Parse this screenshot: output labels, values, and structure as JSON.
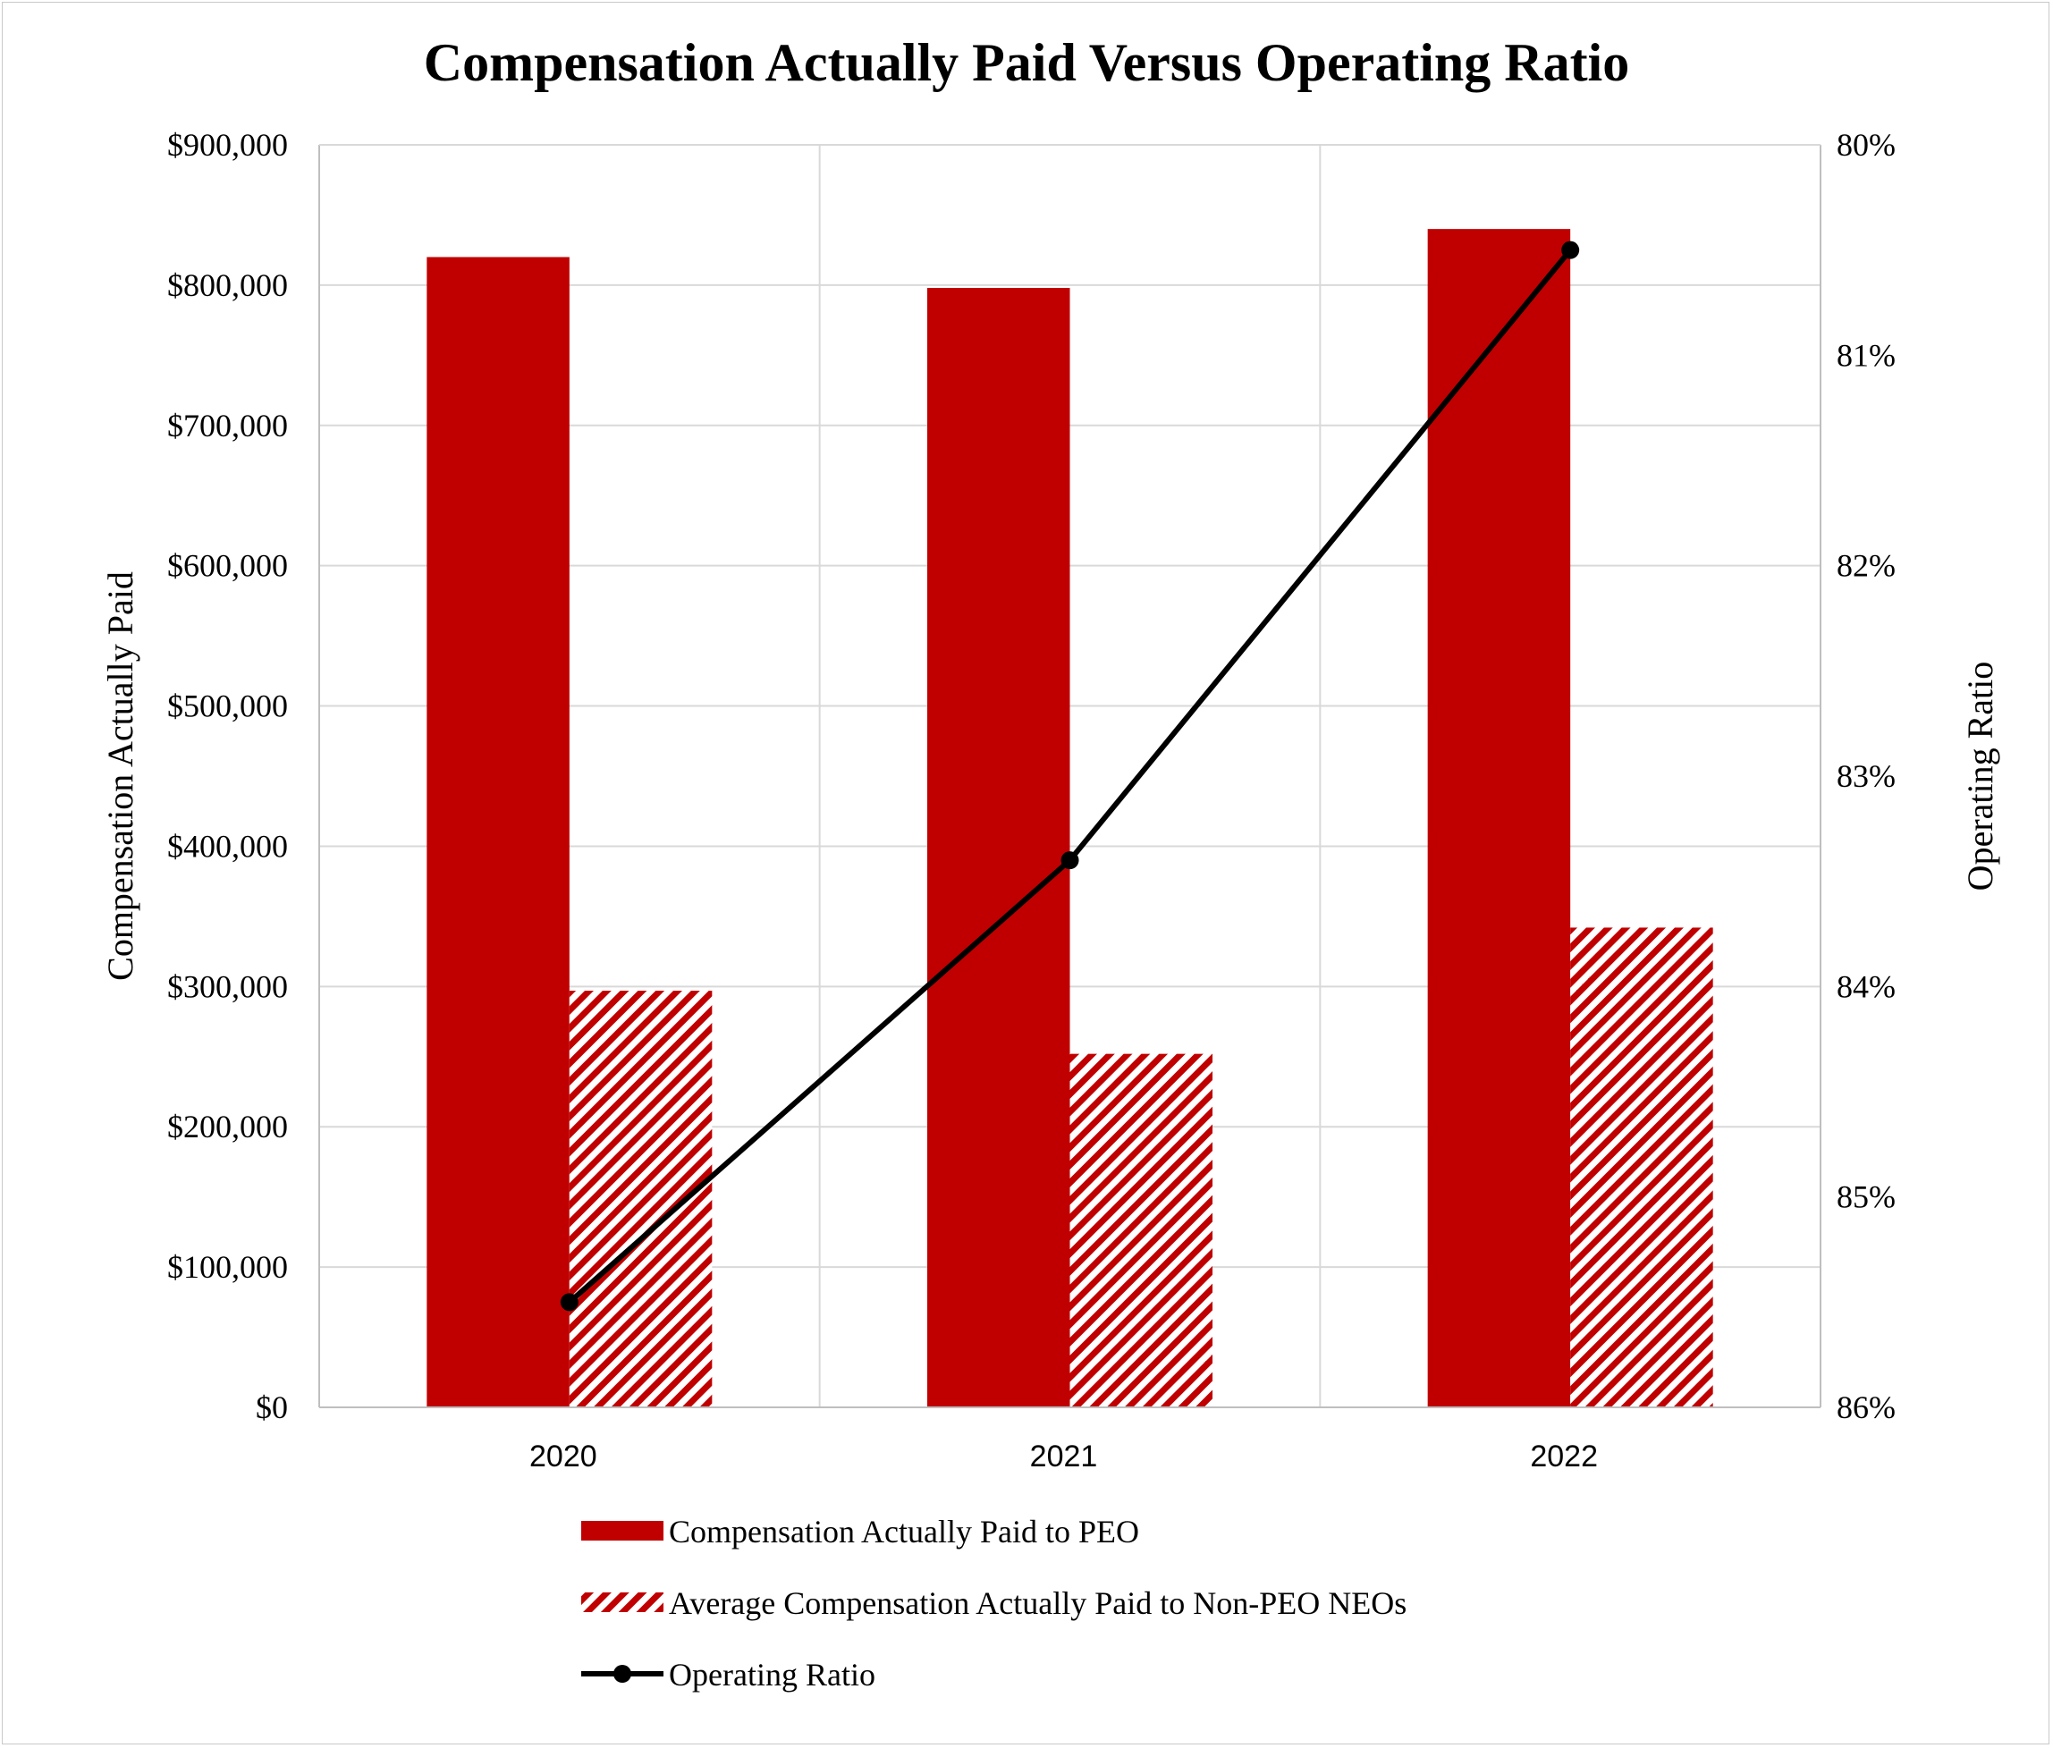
{
  "chart_data": {
    "type": "bar",
    "title": "Compensation Actually Paid Versus Operating Ratio",
    "categories": [
      "2020",
      "2021",
      "2022"
    ],
    "series": [
      {
        "name": "Compensation Actually Paid to PEO",
        "kind": "bar",
        "style": "solid",
        "axis": "left",
        "values": [
          820000,
          798000,
          840000
        ]
      },
      {
        "name": "Average Compensation Actually Paid to Non-PEO NEOs",
        "kind": "bar",
        "style": "hatched",
        "axis": "left",
        "values": [
          297000,
          252000,
          342000
        ]
      },
      {
        "name": "Operating Ratio",
        "kind": "line",
        "axis": "right",
        "values": [
          85.5,
          83.4,
          80.5
        ]
      }
    ],
    "ylabel": "Compensation Actually Paid",
    "ylabel_right": "Operating Ratio",
    "ylim": [
      0,
      900000
    ],
    "ylim_right": [
      80,
      86
    ],
    "right_axis_inverted": true,
    "yticks": [
      0,
      100000,
      200000,
      300000,
      400000,
      500000,
      600000,
      700000,
      800000,
      900000
    ],
    "ytick_labels": [
      "$0",
      "$100,000",
      "$200,000",
      "$300,000",
      "$400,000",
      "$500,000",
      "$600,000",
      "$700,000",
      "$800,000",
      "$900,000"
    ],
    "yticks_right": [
      80,
      81,
      82,
      83,
      84,
      85,
      86
    ],
    "ytick_labels_right": [
      "80%",
      "81%",
      "82%",
      "83%",
      "84%",
      "85%",
      "86%"
    ],
    "grid": true,
    "legend": "bottom"
  },
  "colors": {
    "bar": "#c00000",
    "line": "#000000",
    "grid": "#d9d9d9",
    "axis": "#bfbfbf"
  }
}
